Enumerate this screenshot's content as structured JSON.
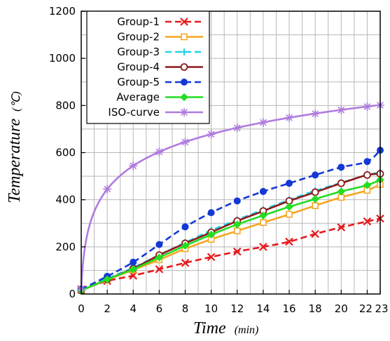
{
  "chart_data": {
    "type": "line",
    "xlabel": "Time",
    "xlabel_unit": "(min)",
    "ylabel": "Temperature",
    "ylabel_unit": "(℃)",
    "xlim": [
      0,
      23
    ],
    "ylim": [
      0,
      1200
    ],
    "x_ticks": [
      0,
      2,
      4,
      6,
      8,
      10,
      12,
      14,
      16,
      18,
      20,
      22,
      23
    ],
    "y_ticks": [
      0,
      200,
      400,
      600,
      800,
      1000,
      1200
    ],
    "grid": true,
    "legend_position": "top-left",
    "series": [
      {
        "name": "Group-1",
        "color": "#e8191c",
        "dash": "dashed",
        "marker": "x",
        "x": [
          0,
          2,
          4,
          6,
          8,
          10,
          12,
          14,
          16,
          18,
          20,
          22,
          23
        ],
        "y": [
          20,
          55,
          78,
          105,
          132,
          157,
          180,
          200,
          222,
          255,
          283,
          308,
          320
        ]
      },
      {
        "name": "Group-2",
        "color": "#f5a623",
        "dash": "solid",
        "marker": "square-open",
        "x": [
          0,
          2,
          4,
          6,
          8,
          10,
          12,
          14,
          16,
          18,
          20,
          22,
          23
        ],
        "y": [
          15,
          60,
          102,
          145,
          192,
          232,
          268,
          303,
          338,
          375,
          410,
          440,
          465
        ]
      },
      {
        "name": "Group-3",
        "color": "#22d3e6",
        "dash": "dashed",
        "marker": "plus",
        "x": [
          0,
          2,
          4,
          6,
          8,
          10,
          12,
          14,
          16,
          18,
          20,
          22,
          23
        ],
        "y": [
          15,
          65,
          112,
          165,
          218,
          270,
          315,
          358,
          400,
          438,
          472,
          505,
          515
        ]
      },
      {
        "name": "Group-4",
        "color": "#8b1a1a",
        "dash": "solid",
        "marker": "circle-open",
        "x": [
          0,
          2,
          4,
          6,
          8,
          10,
          12,
          14,
          16,
          18,
          20,
          22,
          23
        ],
        "y": [
          15,
          62,
          108,
          165,
          215,
          262,
          310,
          352,
          395,
          432,
          470,
          505,
          510
        ]
      },
      {
        "name": "Group-5",
        "color": "#1438d6",
        "dash": "dashed",
        "marker": "circle-filled",
        "x": [
          0,
          2,
          4,
          6,
          8,
          10,
          12,
          14,
          16,
          18,
          20,
          22,
          23
        ],
        "y": [
          20,
          75,
          135,
          210,
          285,
          345,
          395,
          435,
          470,
          505,
          538,
          562,
          610
        ]
      },
      {
        "name": "Average",
        "color": "#22dd22",
        "dash": "solid",
        "marker": "diamond-filled",
        "x": [
          0,
          2,
          4,
          6,
          8,
          10,
          12,
          14,
          16,
          18,
          20,
          22,
          23
        ],
        "y": [
          15,
          62,
          105,
          155,
          205,
          252,
          295,
          333,
          370,
          403,
          435,
          462,
          485
        ]
      },
      {
        "name": "ISO-curve",
        "color": "#b07be0",
        "dash": "solid",
        "marker": "asterisk",
        "x": [
          0,
          2,
          4,
          6,
          8,
          10,
          12,
          14,
          16,
          18,
          20,
          22,
          23
        ],
        "y": [
          20,
          445,
          544,
          603,
          645,
          678,
          705,
          728,
          748,
          765,
          781,
          795,
          801
        ]
      }
    ]
  }
}
